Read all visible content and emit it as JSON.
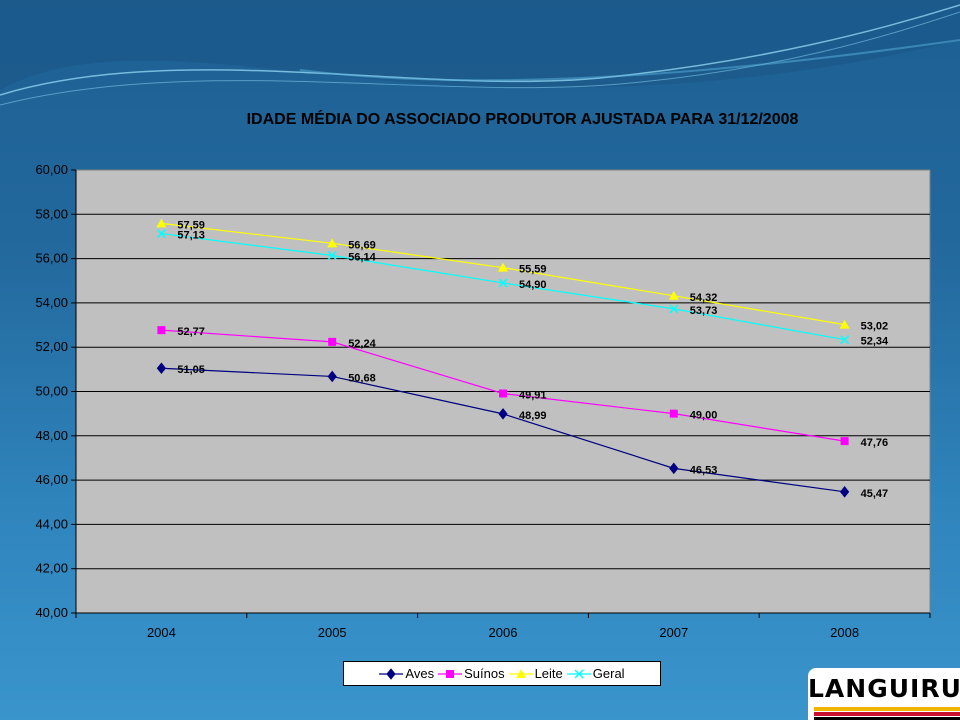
{
  "chart_data": {
    "type": "line",
    "title": "IDADE MÉDIA DO ASSOCIADO PRODUTOR AJUSTADA PARA 31/12/2008",
    "categories": [
      "2004",
      "2005",
      "2006",
      "2007",
      "2008"
    ],
    "ylim": [
      40,
      60
    ],
    "yticks": [
      "40,00",
      "42,00",
      "44,00",
      "46,00",
      "48,00",
      "50,00",
      "52,00",
      "54,00",
      "56,00",
      "58,00",
      "60,00"
    ],
    "grid": true,
    "legend_position": "bottom",
    "series": [
      {
        "name": "Aves",
        "color": "#000080",
        "marker": "diamond",
        "values": [
          51.05,
          50.68,
          48.99,
          46.53,
          45.47
        ],
        "labels": [
          "51,05",
          "50,68",
          "48,99",
          "46,53",
          "45,47"
        ]
      },
      {
        "name": "Suínos",
        "color": "#ff00ff",
        "marker": "square",
        "values": [
          52.77,
          52.24,
          49.91,
          49.0,
          47.76
        ],
        "labels": [
          "52,77",
          "52,24",
          "49,91",
          "49,00",
          "47,76"
        ]
      },
      {
        "name": "Leite",
        "color": "#ffff00",
        "marker": "triangle",
        "values": [
          57.59,
          56.69,
          55.59,
          54.32,
          53.02
        ],
        "labels": [
          "57,59",
          "56,69",
          "55,59",
          "54,32",
          "53,02"
        ]
      },
      {
        "name": "Geral",
        "color": "#00ffff",
        "marker": "x",
        "values": [
          57.13,
          56.14,
          54.9,
          53.73,
          52.34
        ],
        "labels": [
          "57,13",
          "56,14",
          "54,90",
          "53,73",
          "52,34"
        ]
      }
    ]
  },
  "logo": {
    "text": "LANGUIRU",
    "stripe_colors": [
      "#f0b400",
      "#c8102e",
      "#000000"
    ]
  }
}
